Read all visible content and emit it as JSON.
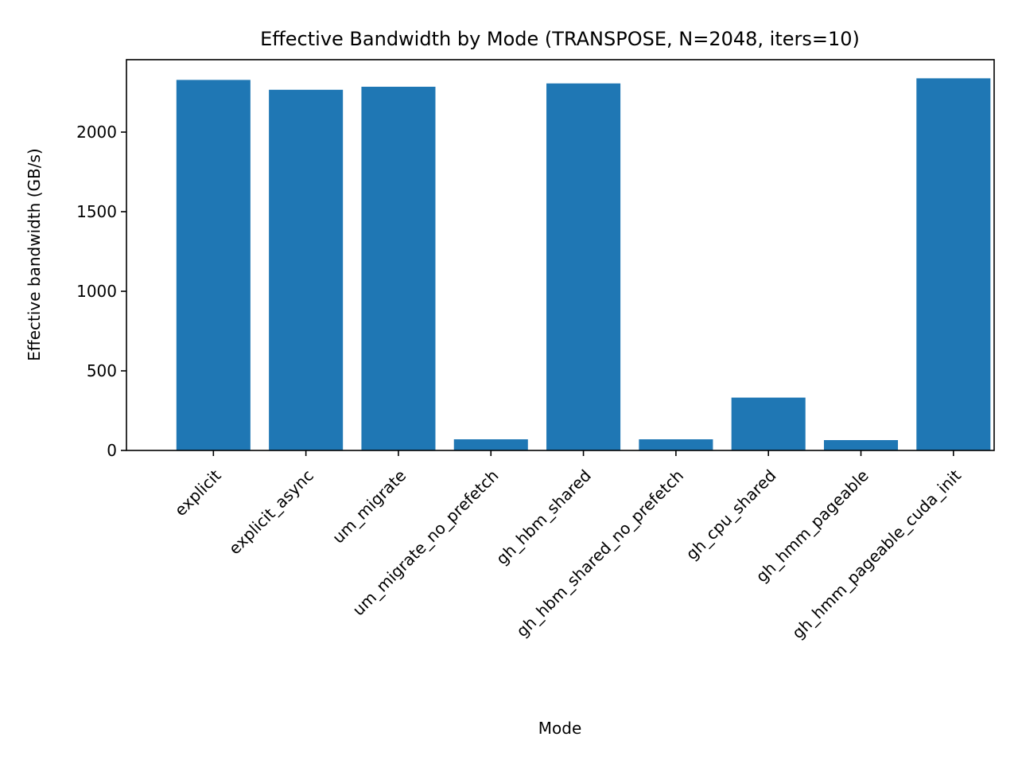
{
  "chart_data": {
    "type": "bar",
    "title": "Effective Bandwidth by Mode (TRANSPOSE, N=2048, iters=10)",
    "xlabel": "Mode",
    "ylabel": "Effective bandwidth (GB/s)",
    "categories": [
      "explicit",
      "explicit_async",
      "um_migrate",
      "um_migrate_no_prefetch",
      "gh_hbm_shared",
      "gh_hbm_shared_no_prefetch",
      "gh_cpu_shared",
      "gh_hmm_pageable",
      "gh_hmm_pageable_cuda_init"
    ],
    "values": [
      2328,
      2266,
      2285,
      70,
      2306,
      70,
      332,
      65,
      2338
    ],
    "ylim": [
      0,
      2455
    ],
    "yticks": [
      0,
      500,
      1000,
      1500,
      2000
    ],
    "grid": false,
    "bar_color": "#1f77b4"
  }
}
